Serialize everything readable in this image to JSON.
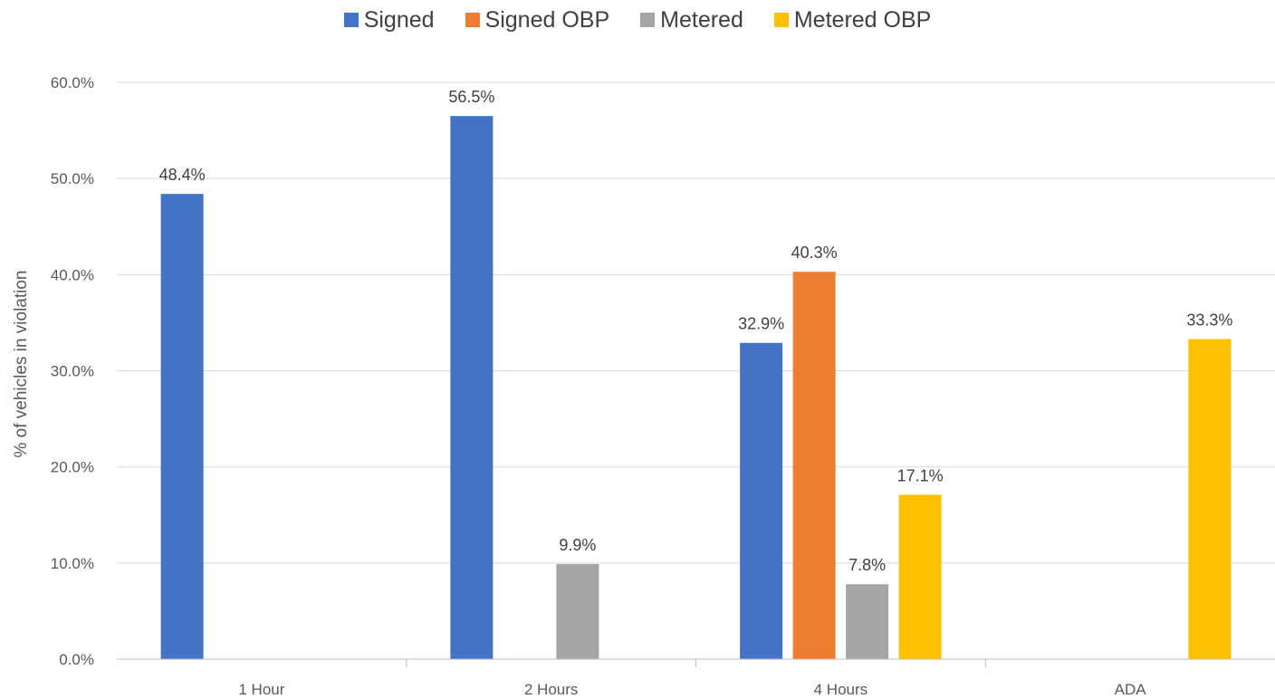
{
  "chart_data": {
    "type": "bar",
    "title": "",
    "xlabel": "",
    "ylabel": "% of vehicles in violation",
    "ylim": [
      0,
      60
    ],
    "ytick_step": 10,
    "ytick_format": "percent_1dp",
    "grid": true,
    "legend": "top-center",
    "categories": [
      "1 Hour",
      "2 Hours",
      "4 Hours",
      "ADA"
    ],
    "series": [
      {
        "name": "Signed",
        "color": "#4472C4",
        "values": [
          48.4,
          56.5,
          32.9,
          null
        ],
        "labels": [
          "48.4%",
          "56.5%",
          "32.9%",
          null
        ]
      },
      {
        "name": "Signed OBP",
        "color": "#ED7D31",
        "values": [
          null,
          null,
          40.3,
          null
        ],
        "labels": [
          null,
          null,
          "40.3%",
          null
        ]
      },
      {
        "name": "Metered",
        "color": "#A5A5A5",
        "values": [
          null,
          9.9,
          7.8,
          null
        ],
        "labels": [
          null,
          "9.9%",
          "7.8%",
          null
        ]
      },
      {
        "name": "Metered OBP",
        "color": "#FFC000",
        "values": [
          null,
          null,
          17.1,
          33.3
        ],
        "labels": [
          null,
          null,
          "17.1%",
          "33.3%"
        ]
      }
    ]
  }
}
